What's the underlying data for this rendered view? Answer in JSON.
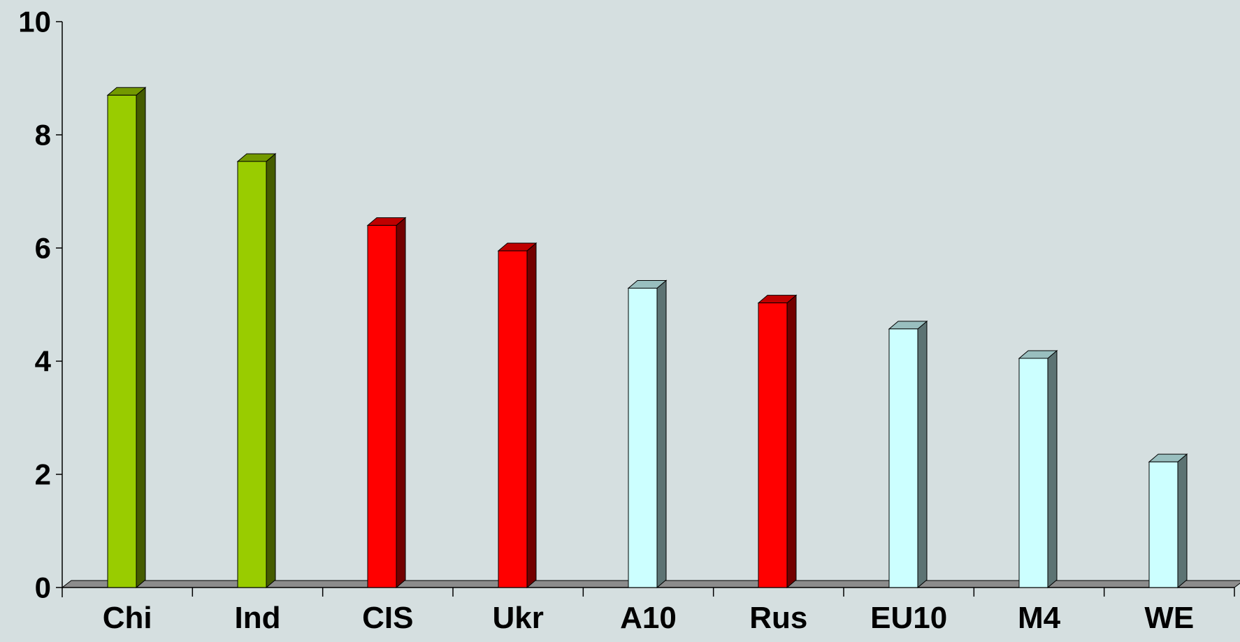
{
  "chart_data": {
    "type": "bar",
    "title": "",
    "xlabel": "",
    "ylabel": "",
    "categories": [
      "Chi",
      "Ind",
      "CIS",
      "Ukr",
      "A10",
      "Rus",
      "EU10",
      "M4",
      "WE"
    ],
    "values": [
      8.7,
      7.53,
      6.4,
      5.95,
      5.29,
      5.03,
      4.57,
      4.05,
      2.22
    ],
    "colors": [
      "#99cc00",
      "#99cc00",
      "#ff0000",
      "#ff0000",
      "#ccffff",
      "#ff0000",
      "#ccffff",
      "#ccffff",
      "#ccffff"
    ],
    "ylim": [
      0,
      10
    ],
    "yticks": [
      "0",
      "2",
      "4",
      "6",
      "8",
      "10"
    ],
    "grid": false,
    "legend": "none"
  }
}
